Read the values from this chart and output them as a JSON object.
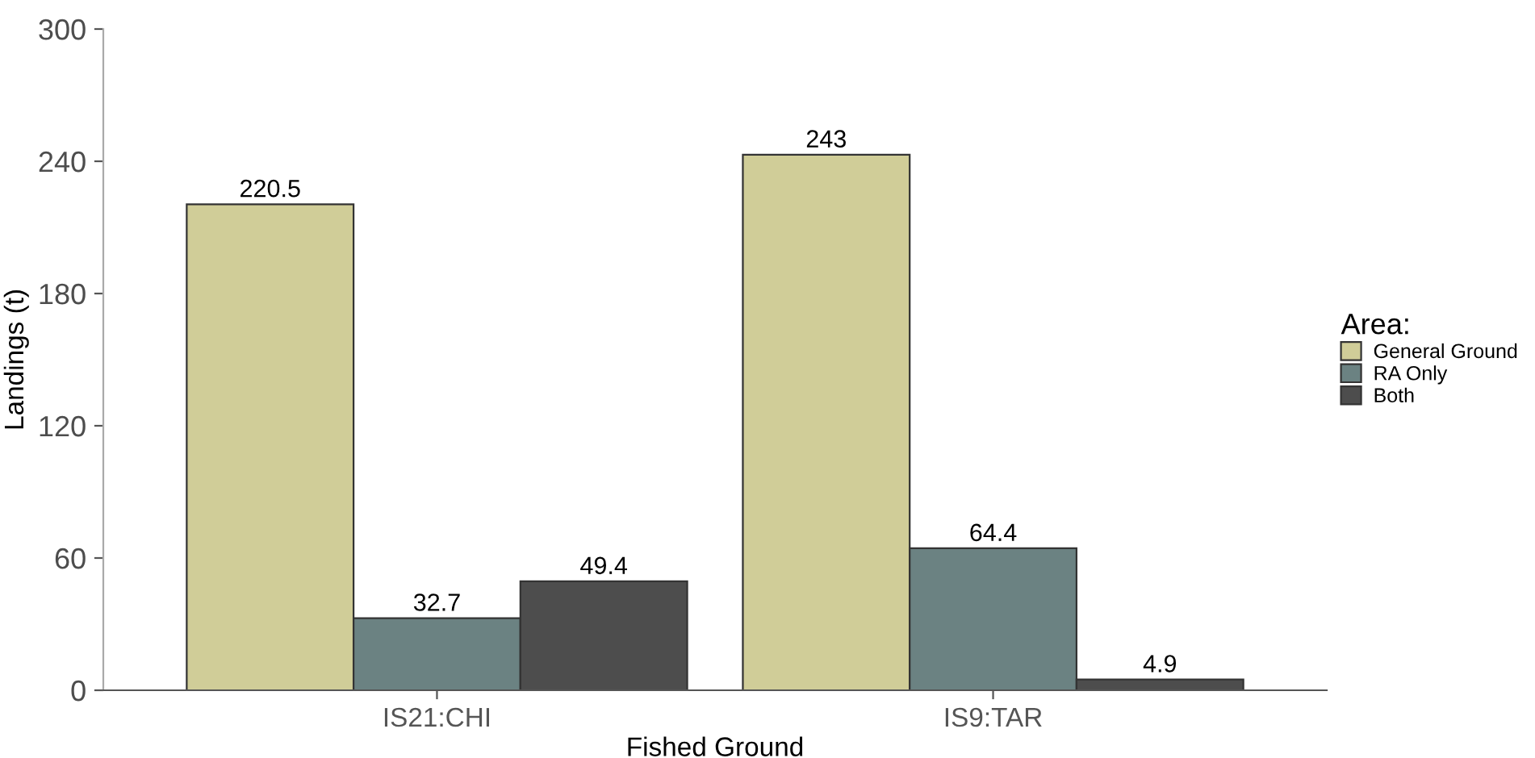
{
  "chart_data": {
    "type": "bar",
    "xlabel": "Fished Ground",
    "ylabel": "Landings (t)",
    "legend_title": "Area:",
    "categories": [
      "IS21:CHI",
      "IS9:TAR"
    ],
    "series": [
      {
        "name": "General Ground",
        "color": "#d0cd98",
        "values": [
          220.5,
          243
        ]
      },
      {
        "name": "RA Only",
        "color": "#6b8282",
        "values": [
          32.7,
          64.4
        ]
      },
      {
        "name": "Both",
        "color": "#4d4d4d",
        "values": [
          49.4,
          4.9
        ]
      }
    ],
    "ylim": [
      0,
      300
    ],
    "yticks": [
      0,
      60,
      120,
      180,
      240,
      300
    ],
    "grid": false,
    "legend": "right",
    "data_labels": true
  }
}
